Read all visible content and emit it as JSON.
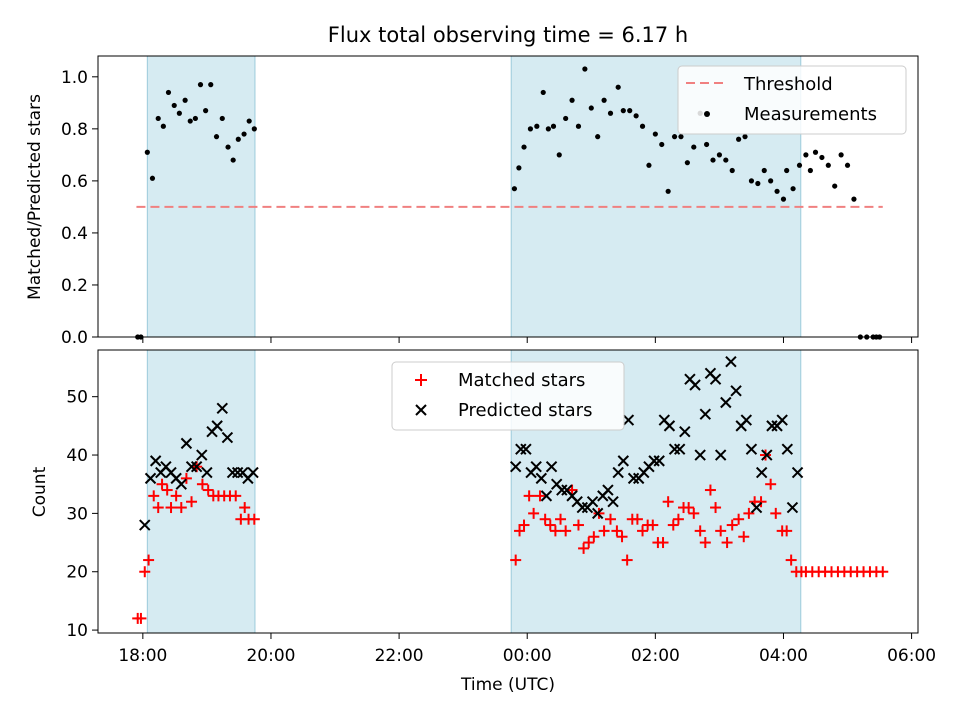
{
  "chart_data": [
    {
      "type": "scatter",
      "title": "Flux total observing time = 6.17 h",
      "xlabel": "",
      "ylabel": "Matched/Predicted stars",
      "ylim": [
        0,
        1.08
      ],
      "yticks": [
        "0.0",
        "0.2",
        "0.4",
        "0.6",
        "0.8",
        "1.0"
      ],
      "yticks_values": [
        0,
        0.2,
        0.4,
        0.6,
        0.8,
        1.0
      ],
      "xlim_hours": [
        17.3,
        30.1
      ],
      "shaded_intervals_hours": [
        [
          18.07,
          19.75
        ],
        [
          23.75,
          28.27
        ]
      ],
      "threshold_line": {
        "y": 0.5,
        "x_start_hours": 17.9,
        "x_end_hours": 29.55,
        "color": "#f08080"
      },
      "legend": {
        "position": "top-right",
        "entries": [
          "Threshold",
          "Measurements"
        ]
      },
      "series": [
        {
          "name": "Measurements",
          "x_hours": [
            17.92,
            17.97,
            18.07,
            18.15,
            18.24,
            18.32,
            18.4,
            18.49,
            18.57,
            18.66,
            18.74,
            18.82,
            18.9,
            18.98,
            19.06,
            19.15,
            19.24,
            19.33,
            19.41,
            19.49,
            19.58,
            19.66,
            19.74,
            23.8,
            23.87,
            23.95,
            24.05,
            24.15,
            24.25,
            24.33,
            24.41,
            24.5,
            24.6,
            24.7,
            24.8,
            24.9,
            25.0,
            25.1,
            25.2,
            25.3,
            25.42,
            25.5,
            25.6,
            25.7,
            25.8,
            25.9,
            26.0,
            26.1,
            26.2,
            26.3,
            26.4,
            26.5,
            26.6,
            26.7,
            26.8,
            26.9,
            27.0,
            27.1,
            27.2,
            27.3,
            27.4,
            27.5,
            27.6,
            27.7,
            27.8,
            27.9,
            28.0,
            28.05,
            28.15,
            28.25,
            28.35,
            28.42,
            28.5,
            28.6,
            28.7,
            28.8,
            28.9,
            29.0,
            29.1,
            29.2,
            29.3,
            29.4,
            29.45,
            29.5
          ],
          "values": [
            0,
            0,
            0.71,
            0.61,
            0.84,
            0.81,
            0.94,
            0.89,
            0.86,
            0.91,
            0.83,
            0.84,
            0.97,
            0.87,
            0.97,
            0.77,
            0.84,
            0.73,
            0.68,
            0.76,
            0.78,
            0.83,
            0.8,
            0.57,
            0.65,
            0.73,
            0.8,
            0.81,
            0.94,
            0.8,
            0.81,
            0.7,
            0.84,
            0.91,
            0.81,
            1.03,
            0.88,
            0.77,
            0.91,
            0.86,
            0.96,
            0.87,
            0.87,
            0.85,
            0.81,
            0.66,
            0.78,
            0.74,
            0.56,
            0.77,
            0.77,
            0.67,
            0.73,
            0.86,
            0.74,
            0.68,
            0.7,
            0.68,
            0.64,
            0.76,
            0.77,
            0.6,
            0.59,
            0.64,
            0.6,
            0.56,
            0.53,
            0.64,
            0.57,
            0.66,
            0.7,
            0.64,
            0.71,
            0.69,
            0.66,
            0.58,
            0.7,
            0.66,
            0.53,
            0,
            0,
            0,
            0,
            0
          ]
        }
      ]
    },
    {
      "type": "scatter",
      "title": "",
      "xlabel": "Time (UTC)",
      "ylabel": "Count",
      "ylim": [
        9.5,
        58
      ],
      "yticks": [
        "10",
        "20",
        "30",
        "40",
        "50"
      ],
      "yticks_values": [
        10,
        20,
        30,
        40,
        50
      ],
      "xticks": [
        "18:00",
        "20:00",
        "22:00",
        "00:00",
        "02:00",
        "04:00",
        "06:00"
      ],
      "xticks_hours": [
        18,
        20,
        22,
        24,
        26,
        28,
        30
      ],
      "legend": {
        "position": "top-center",
        "entries": [
          "Matched stars",
          "Predicted stars"
        ]
      },
      "series": [
        {
          "name": "Matched stars",
          "color": "#ff0000",
          "marker": "+",
          "x_hours": [
            17.92,
            17.97,
            18.03,
            18.09,
            18.17,
            18.24,
            18.3,
            18.38,
            18.44,
            18.52,
            18.6,
            18.68,
            18.76,
            18.84,
            18.93,
            19.02,
            19.1,
            19.18,
            19.27,
            19.36,
            19.45,
            19.53,
            19.59,
            19.65,
            19.74,
            23.82,
            23.88,
            23.95,
            24.03,
            24.1,
            24.2,
            24.28,
            24.36,
            24.44,
            24.52,
            24.6,
            24.7,
            24.8,
            24.88,
            24.96,
            25.04,
            25.12,
            25.2,
            25.3,
            25.4,
            25.48,
            25.56,
            25.64,
            25.72,
            25.8,
            25.88,
            25.96,
            26.04,
            26.12,
            26.2,
            26.28,
            26.36,
            26.44,
            26.52,
            26.6,
            26.7,
            26.78,
            26.86,
            26.94,
            27.02,
            27.12,
            27.2,
            27.3,
            27.38,
            27.46,
            27.55,
            27.65,
            27.72,
            27.8,
            27.88,
            27.98,
            28.05,
            28.12,
            28.2,
            28.28,
            28.35,
            28.45,
            28.55,
            28.65,
            28.75,
            28.85,
            28.95,
            29.05,
            29.15,
            29.25,
            29.35,
            29.45,
            29.55
          ],
          "values": [
            12,
            12,
            20,
            22,
            33,
            31,
            35,
            34,
            31,
            33,
            31,
            36,
            32,
            38,
            35,
            34,
            33,
            33,
            33,
            33,
            33,
            29,
            31,
            29,
            29,
            22,
            27,
            28,
            33,
            30,
            33,
            29,
            28,
            27,
            29,
            27,
            34,
            28,
            24,
            25,
            26,
            30,
            27,
            29,
            27,
            26,
            22,
            29,
            29,
            27,
            28,
            28,
            25,
            25,
            32,
            28,
            29,
            31,
            31,
            30,
            27,
            25,
            34,
            31,
            27,
            25,
            28,
            29,
            26,
            30,
            32,
            32,
            40,
            35,
            30,
            27,
            27,
            22,
            20,
            20,
            20,
            20,
            20,
            20,
            20,
            20,
            20,
            20,
            20,
            20,
            20,
            20,
            20
          ]
        },
        {
          "name": "Predicted stars",
          "color": "#000000",
          "marker": "x",
          "x_hours": [
            18.03,
            18.12,
            18.2,
            18.28,
            18.36,
            18.44,
            18.52,
            18.6,
            18.68,
            18.76,
            18.84,
            18.92,
            19.0,
            19.08,
            19.16,
            19.24,
            19.32,
            19.4,
            19.48,
            19.56,
            19.64,
            19.72,
            23.82,
            23.9,
            23.98,
            24.06,
            24.14,
            24.22,
            24.3,
            24.38,
            24.46,
            24.54,
            24.62,
            24.7,
            24.78,
            24.86,
            24.94,
            25.02,
            25.1,
            25.18,
            25.26,
            25.34,
            25.42,
            25.5,
            25.58,
            25.66,
            25.74,
            25.82,
            25.9,
            25.98,
            26.06,
            26.14,
            26.22,
            26.3,
            26.38,
            26.46,
            26.54,
            26.62,
            26.7,
            26.78,
            26.86,
            26.94,
            27.02,
            27.1,
            27.18,
            27.26,
            27.34,
            27.42,
            27.5,
            27.58,
            27.66,
            27.74,
            27.82,
            27.9,
            27.98,
            28.06,
            28.14,
            28.22
          ],
          "values": [
            28,
            36,
            39,
            37,
            38,
            37,
            36,
            35,
            42,
            38,
            38,
            40,
            37,
            44,
            45,
            48,
            43,
            37,
            37,
            37,
            36,
            37,
            38,
            41,
            41,
            37,
            38,
            36,
            33,
            38,
            35,
            34,
            34,
            33,
            32,
            31,
            31,
            32,
            30,
            33,
            34,
            32,
            37,
            39,
            46,
            36,
            36,
            37,
            38,
            39,
            39,
            46,
            45,
            41,
            41,
            44,
            53,
            52,
            40,
            47,
            54,
            53,
            40,
            49,
            56,
            51,
            45,
            46,
            41,
            31,
            37,
            40,
            45,
            45,
            46,
            41,
            31,
            37
          ]
        }
      ]
    }
  ]
}
